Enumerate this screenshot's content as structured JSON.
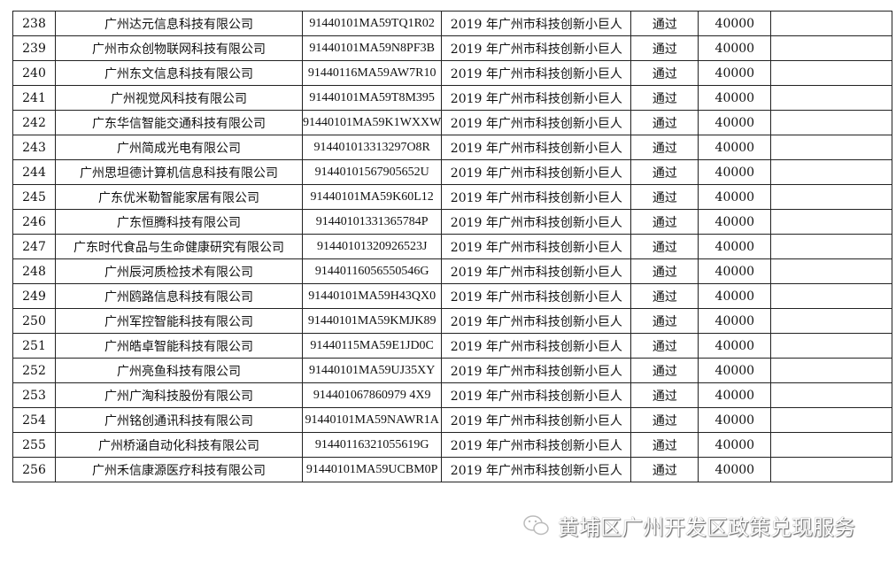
{
  "table": {
    "rows": [
      [
        "238",
        "广州达元信息科技有限公司",
        "91440101MA59TQ1R02",
        "2019 年广州市科技创新小巨人",
        "通过",
        "40000",
        ""
      ],
      [
        "239",
        "广州市众创物联网科技有限公司",
        "91440101MA59N8PF3B",
        "2019 年广州市科技创新小巨人",
        "通过",
        "40000",
        ""
      ],
      [
        "240",
        "广州东文信息科技有限公司",
        "91440116MA59AW7R10",
        "2019 年广州市科技创新小巨人",
        "通过",
        "40000",
        ""
      ],
      [
        "241",
        "广州视觉风科技有限公司",
        "91440101MA59T8M395",
        "2019 年广州市科技创新小巨人",
        "通过",
        "40000",
        ""
      ],
      [
        "242",
        "广东华信智能交通科技有限公司",
        "91440101MA59K1WXXW",
        "2019 年广州市科技创新小巨人",
        "通过",
        "40000",
        ""
      ],
      [
        "243",
        "广州简成光电有限公司",
        "914401013313297O8R",
        "2019 年广州市科技创新小巨人",
        "通过",
        "40000",
        ""
      ],
      [
        "244",
        "广州思坦德计算机信息科技有限公司",
        "91440101567905652U",
        "2019 年广州市科技创新小巨人",
        "通过",
        "40000",
        ""
      ],
      [
        "245",
        "广东优米勒智能家居有限公司",
        "91440101MA59K60L12",
        "2019 年广州市科技创新小巨人",
        "通过",
        "40000",
        ""
      ],
      [
        "246",
        "广东恒腾科技有限公司",
        "91440101331365784P",
        "2019 年广州市科技创新小巨人",
        "通过",
        "40000",
        ""
      ],
      [
        "247",
        "广东时代食品与生命健康研究有限公司",
        "91440101320926523J",
        "2019 年广州市科技创新小巨人",
        "通过",
        "40000",
        ""
      ],
      [
        "248",
        "广州辰河质检技术有限公司",
        "91440116056550546G",
        "2019 年广州市科技创新小巨人",
        "通过",
        "40000",
        ""
      ],
      [
        "249",
        "广州鸥路信息科技有限公司",
        "91440101MA59H43QX0",
        "2019 年广州市科技创新小巨人",
        "通过",
        "40000",
        ""
      ],
      [
        "250",
        "广州军控智能科技有限公司",
        "91440101MA59KMJK89",
        "2019 年广州市科技创新小巨人",
        "通过",
        "40000",
        ""
      ],
      [
        "251",
        "广州皓卓智能科技有限公司",
        "91440115MA59E1JD0C",
        "2019 年广州市科技创新小巨人",
        "通过",
        "40000",
        ""
      ],
      [
        "252",
        "广州亮鱼科技有限公司",
        "91440101MA59UJ35XY",
        "2019 年广州市科技创新小巨人",
        "通过",
        "40000",
        ""
      ],
      [
        "253",
        "广州广淘科技股份有限公司",
        "914401067860979 4X9",
        "2019 年广州市科技创新小巨人",
        "通过",
        "40000",
        ""
      ],
      [
        "254",
        "广州铭创通讯科技有限公司",
        "91440101MA59NAWR1A",
        "2019 年广州市科技创新小巨人",
        "通过",
        "40000",
        ""
      ],
      [
        "255",
        "广州桥涵自动化科技有限公司",
        "91440116321055619G",
        "2019 年广州市科技创新小巨人",
        "通过",
        "40000",
        ""
      ],
      [
        "256",
        "广州禾信康源医疗科技有限公司",
        "91440101MA59UCBM0P",
        "2019 年广州市科技创新小巨人",
        "通过",
        "40000",
        ""
      ]
    ]
  },
  "watermark": {
    "text": "黄埔区广州开发区政策兑现服务",
    "icon": "wechat-icon"
  }
}
